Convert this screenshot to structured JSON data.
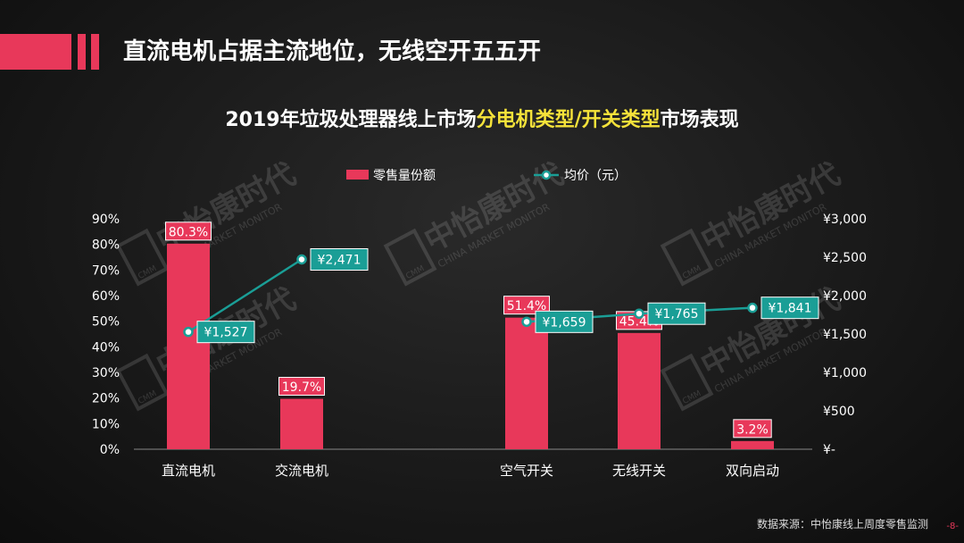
{
  "page": {
    "title": "直流电机占据主流地位，无线空开五五开",
    "source": "数据来源：中怡康线上周度零售监测",
    "page_number": "-8-"
  },
  "watermark": {
    "text": "中怡康时代",
    "sub": "CHINA MARKET MONITOR",
    "logo": "CMM"
  },
  "colors": {
    "bar": "#e8385a",
    "line": "#1a9e96",
    "highlight": "#f5e23a"
  },
  "chart_data": {
    "type": "bar",
    "title_parts": [
      {
        "text": "2019年垃圾处理器线上市场",
        "highlight": false
      },
      {
        "text": "分电机类型/开关类型",
        "highlight": true
      },
      {
        "text": "市场表现",
        "highlight": false
      }
    ],
    "categories": [
      "直流电机",
      "交流电机",
      "",
      "空气开关",
      "无线开关",
      "双向启动"
    ],
    "series": [
      {
        "name": "零售量份额",
        "type": "bar",
        "axis": "left",
        "values": [
          80.3,
          19.7,
          null,
          51.4,
          45.4,
          3.2
        ],
        "labels": [
          "80.3%",
          "19.7%",
          "",
          "51.4%",
          "45.4%",
          "3.2%"
        ]
      },
      {
        "name": "均价（元）",
        "type": "line",
        "axis": "right",
        "segments": [
          {
            "points": [
              [
                0,
                1527
              ],
              [
                1,
                2471
              ]
            ],
            "labels": [
              "¥1,527",
              "¥2,471"
            ]
          },
          {
            "points": [
              [
                3,
                1659
              ],
              [
                4,
                1765
              ],
              [
                5,
                1841
              ]
            ],
            "labels": [
              "¥1,659",
              "¥1,765",
              "¥1,841"
            ]
          }
        ]
      }
    ],
    "y_left": {
      "min": 0,
      "max": 90,
      "ticks": [
        "0%",
        "10%",
        "20%",
        "30%",
        "40%",
        "50%",
        "60%",
        "70%",
        "80%",
        "90%"
      ]
    },
    "y_right": {
      "min": 0,
      "max": 3000,
      "ticks": [
        "¥-",
        "¥500",
        "¥1,000",
        "¥1,500",
        "¥2,000",
        "¥2,500",
        "¥3,000"
      ]
    },
    "legend_position": "top-center",
    "grid": false
  }
}
